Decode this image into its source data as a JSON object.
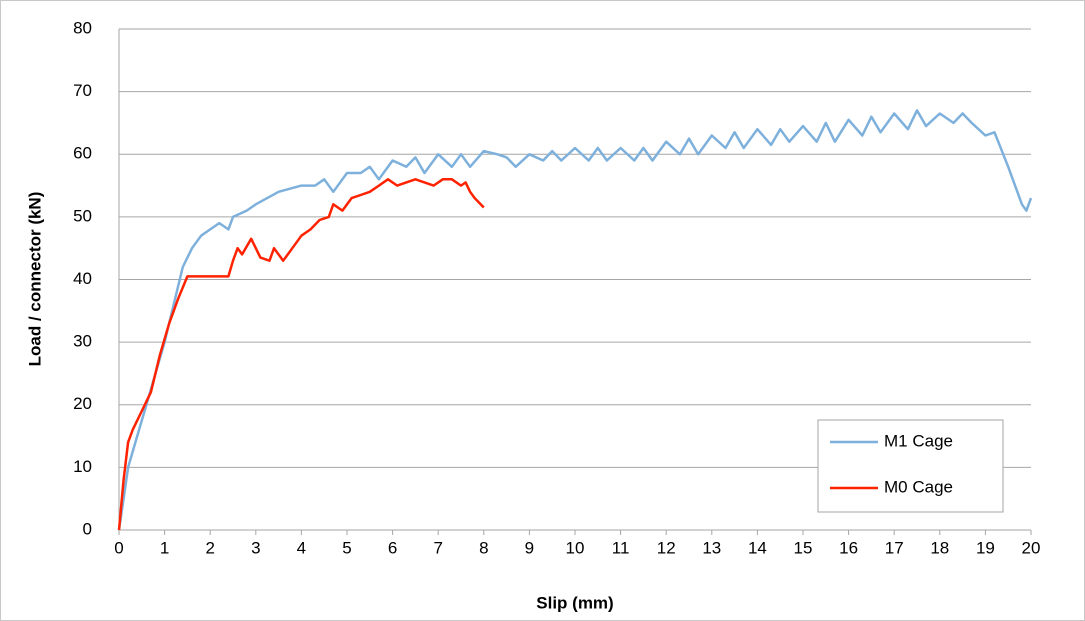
{
  "chart_data": {
    "type": "line",
    "x_label": "Slip (mm)",
    "y_label": "Load / connector (kN)",
    "xlim": [
      0,
      20
    ],
    "xticks": [
      0,
      1,
      2,
      3,
      4,
      5,
      6,
      7,
      8,
      9,
      10,
      11,
      12,
      13,
      14,
      15,
      16,
      17,
      18,
      19,
      20
    ],
    "ylim": [
      0,
      80
    ],
    "yticks": [
      0,
      10,
      20,
      30,
      40,
      50,
      60,
      70,
      80
    ],
    "grid": true,
    "legend": "lower right",
    "series": [
      {
        "name": "M1 Cage",
        "color": "#7eb0dc",
        "x": [
          0,
          0.1,
          0.2,
          0.4,
          0.6,
          0.8,
          1.0,
          1.2,
          1.4,
          1.6,
          1.8,
          2.0,
          2.2,
          2.4,
          2.5,
          2.8,
          3.0,
          3.5,
          4.0,
          4.3,
          4.5,
          4.7,
          5.0,
          5.3,
          5.5,
          5.7,
          6.0,
          6.3,
          6.5,
          6.7,
          7.0,
          7.3,
          7.5,
          7.7,
          8.0,
          8.3,
          8.5,
          8.7,
          9.0,
          9.3,
          9.5,
          9.7,
          10.0,
          10.3,
          10.5,
          10.7,
          11.0,
          11.3,
          11.5,
          11.7,
          12.0,
          12.3,
          12.5,
          12.7,
          13.0,
          13.3,
          13.5,
          13.7,
          14.0,
          14.3,
          14.5,
          14.7,
          15.0,
          15.3,
          15.5,
          15.7,
          16.0,
          16.3,
          16.5,
          16.7,
          17.0,
          17.3,
          17.5,
          17.7,
          18.0,
          18.3,
          18.5,
          18.7,
          19.0,
          19.2,
          19.5,
          19.8,
          19.9,
          20.0
        ],
        "values": [
          0,
          5,
          10,
          15,
          20,
          25,
          30,
          36,
          42,
          45,
          47,
          48,
          49,
          48,
          50,
          51,
          52,
          54,
          55,
          55,
          56,
          54,
          57,
          57,
          58,
          56,
          59,
          58,
          59.5,
          57,
          60,
          58,
          60,
          58,
          60.5,
          60,
          59.5,
          58,
          60,
          59,
          60.5,
          59,
          61,
          59,
          61,
          59,
          61,
          59,
          61,
          59,
          62,
          60,
          62.5,
          60,
          63,
          61,
          63.5,
          61,
          64,
          61.5,
          64,
          62,
          64.5,
          62,
          65,
          62,
          65.5,
          63,
          66,
          63.5,
          66.5,
          64,
          67,
          64.5,
          66.5,
          65,
          66.5,
          65,
          63,
          63.5,
          58,
          52,
          51,
          53
        ]
      },
      {
        "name": "M0 Cage",
        "color": "#ff2200",
        "x": [
          0,
          0.1,
          0.2,
          0.3,
          0.5,
          0.7,
          0.9,
          1.1,
          1.3,
          1.5,
          1.7,
          2.0,
          2.4,
          2.5,
          2.6,
          2.7,
          2.9,
          3.1,
          3.3,
          3.4,
          3.6,
          3.8,
          4.0,
          4.2,
          4.4,
          4.6,
          4.7,
          4.9,
          5.1,
          5.3,
          5.5,
          5.7,
          5.9,
          6.1,
          6.3,
          6.5,
          6.7,
          6.9,
          7.1,
          7.3,
          7.5,
          7.6,
          7.7,
          7.8,
          8.0
        ],
        "values": [
          0,
          8,
          14,
          16,
          19,
          22,
          28,
          33,
          37,
          40.5,
          40.5,
          40.5,
          40.5,
          43,
          45,
          44,
          46.5,
          43.5,
          43,
          45,
          43,
          45,
          47,
          48,
          49.5,
          50,
          52,
          51,
          53,
          53.5,
          54,
          55,
          56,
          55,
          55.5,
          56,
          55.5,
          55,
          56,
          56,
          55,
          55.5,
          54,
          53,
          51.5
        ]
      }
    ]
  }
}
